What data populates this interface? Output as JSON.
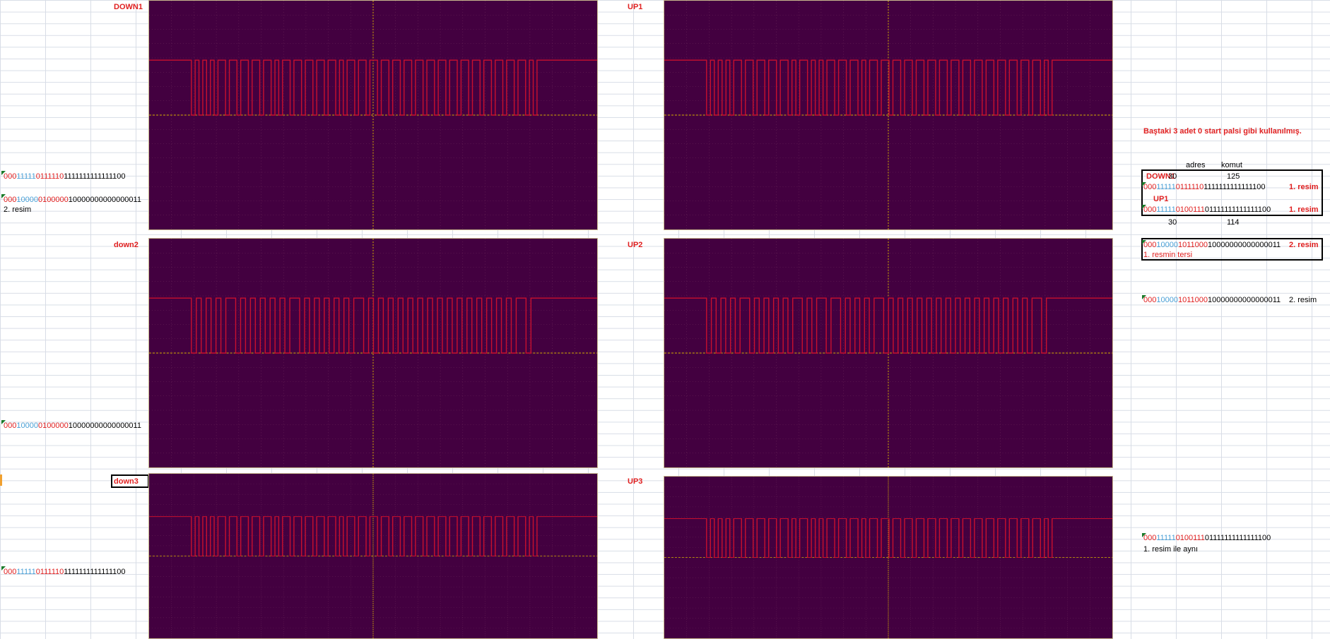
{
  "colors": {
    "scope_bg": "#430040",
    "trace": "#c8102e",
    "grid_axis": "#d4b000",
    "label_red": "#e02020",
    "bits_blue": "#4aa0d6",
    "comment_marker": "#1a7a2a"
  },
  "scopes": [
    {
      "id": "down1",
      "label": "DOWN1",
      "bits": "000111110111110111111111111111100"
    },
    {
      "id": "up1",
      "label": "UP1",
      "bits": "000111110100111011111111111111100"
    },
    {
      "id": "down2",
      "label": "down2",
      "bits": "000100000100000100000000000000011"
    },
    {
      "id": "up2",
      "label": "UP2",
      "bits": "000100001011000100000000000000011"
    },
    {
      "id": "down3",
      "label": "down3",
      "bits": "000111110111110111111111111111100"
    },
    {
      "id": "up3",
      "label": "UP3",
      "bits": "000111110100111011111111111111100"
    }
  ],
  "left": {
    "r1": {
      "a": "000",
      "b": "11111",
      "c": "0111110",
      "d": "1111111111111100"
    },
    "r2": {
      "a": "000",
      "b": "10000",
      "c": "0100000",
      "d": "10000000000000011"
    },
    "r2_note": "2. resim",
    "r3": {
      "a": "000",
      "b": "10000",
      "c": "0100000",
      "d": "10000000000000011"
    },
    "r4": {
      "a": "000",
      "b": "11111",
      "c": "0111110",
      "d": "1111111111111100"
    }
  },
  "right": {
    "note": "Baştaki 3 adet 0 start palsi gibi kullanılmış.",
    "hdr_adres": "adres",
    "hdr_komut": "komut",
    "down1_label": "DOWN1",
    "down1_adres": "30",
    "down1_komut": "125",
    "row_down1": {
      "a": "000",
      "b": "11111",
      "c": "0111110",
      "d": "1111111111111100"
    },
    "row_down1_note": "1. resim",
    "up1_label": "UP1",
    "row_up1": {
      "a": "000",
      "b": "11111",
      "c": "0100111",
      "d": "01111111111111100"
    },
    "row_up1_note": "1. resim",
    "up1_adres": "30",
    "up1_komut": "114",
    "row_2": {
      "a": "000",
      "b": "10000",
      "c": "1011000",
      "d": "10000000000000011"
    },
    "row_2_note": "2. resim",
    "row_2_sub": "1. resmin tersi",
    "row_3": {
      "a": "000",
      "b": "10000",
      "c": "1011000",
      "d": "10000000000000011"
    },
    "row_3_note": "2. resim",
    "row_4": {
      "a": "000",
      "b": "11111",
      "c": "0100111",
      "d": "01111111111111100"
    },
    "row_4_note": "1. resim ile aynı"
  }
}
